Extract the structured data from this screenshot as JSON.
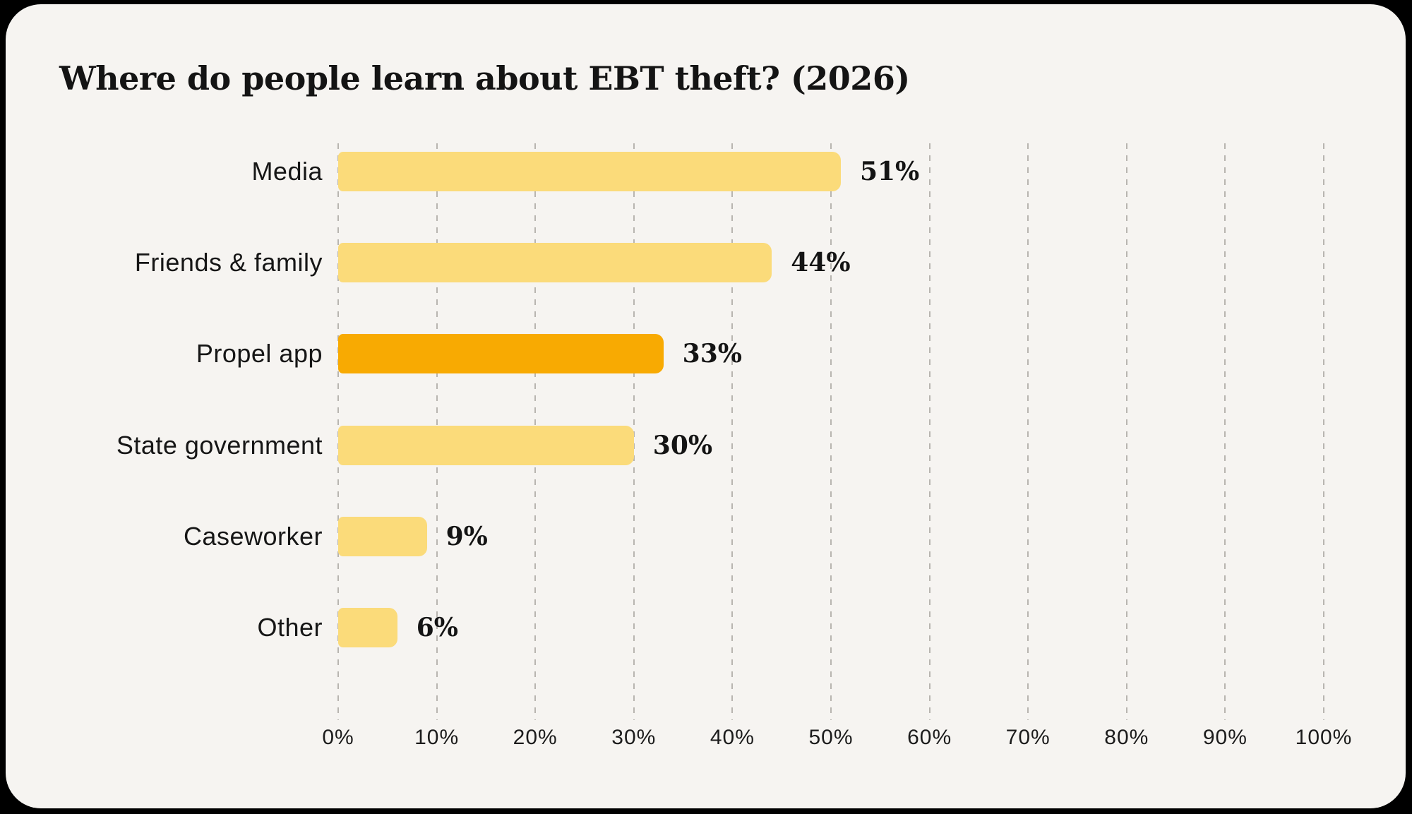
{
  "card": {
    "title": "Where do people learn about EBT theft? (2026)"
  },
  "colors": {
    "outer_background": "#000000",
    "card_background": "#F6F4F1",
    "bar_default": "#FBDB7A",
    "bar_highlight": "#F8AA02",
    "gridline": "#B8B5B0",
    "text": "#141414"
  },
  "chart_data": {
    "type": "bar",
    "orientation": "horizontal",
    "title": "Where do people learn about EBT theft? (2026)",
    "categories": [
      "Media",
      "Friends & family",
      "Propel app",
      "State government",
      "Caseworker",
      "Other"
    ],
    "values": [
      51,
      44,
      33,
      30,
      9,
      6
    ],
    "value_labels": [
      "51%",
      "44%",
      "33%",
      "30%",
      "9%",
      "6%"
    ],
    "highlighted": [
      false,
      false,
      true,
      false,
      false,
      false
    ],
    "xlabel": "",
    "ylabel": "",
    "xlim": [
      0,
      100
    ],
    "x_tick_values": [
      0,
      10,
      20,
      30,
      40,
      50,
      60,
      70,
      80,
      90,
      100
    ],
    "x_tick_labels": [
      "0%",
      "10%",
      "20%",
      "30%",
      "40%",
      "50%",
      "60%",
      "70%",
      "80%",
      "90%",
      "100%"
    ],
    "grid": "vertical-dashed",
    "legend": "none"
  }
}
